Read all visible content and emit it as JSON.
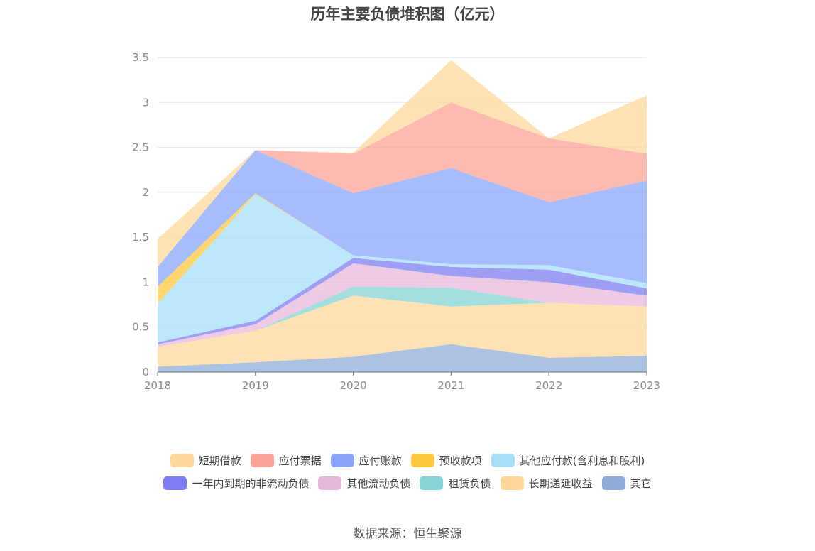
{
  "title": "历年主要负债堆积图（亿元）",
  "source": "数据来源：恒生聚源",
  "chart_data": {
    "type": "area",
    "stacked": true,
    "title": "历年主要负债堆积图（亿元）",
    "x": [
      "2018",
      "2019",
      "2020",
      "2021",
      "2022",
      "2023"
    ],
    "ylim": [
      0,
      3.5
    ],
    "yticks": [
      "0",
      "0.5",
      "1",
      "1.5",
      "2",
      "2.5",
      "3",
      "3.5"
    ],
    "grid": true,
    "legend_position": "bottom",
    "series": [
      {
        "name": "其它",
        "color": "#8fadda",
        "values": [
          0.06,
          0.11,
          0.17,
          0.31,
          0.16,
          0.18
        ]
      },
      {
        "name": "长期递延收益",
        "color": "#fdd89a",
        "values": [
          0.22,
          0.35,
          0.68,
          0.42,
          0.61,
          0.55
        ]
      },
      {
        "name": "租赁负债",
        "color": "#86d4d4",
        "values": [
          0,
          0,
          0.1,
          0.21,
          0,
          0
        ]
      },
      {
        "name": "其他流动负债",
        "color": "#e8b8dc",
        "values": [
          0.03,
          0.07,
          0.26,
          0.13,
          0.23,
          0.12
        ]
      },
      {
        "name": "一年内到期的非流动负债",
        "color": "#7e7ef2",
        "values": [
          0.02,
          0.04,
          0.06,
          0.1,
          0.14,
          0.08
        ]
      },
      {
        "name": "其他应付款(含利息和股利)",
        "color": "#a7dff9",
        "values": [
          0.43,
          1.41,
          0.03,
          0.03,
          0.05,
          0.06
        ]
      },
      {
        "name": "预收款项",
        "color": "#ffc83f",
        "values": [
          0.19,
          0.01,
          0,
          0,
          0,
          0
        ]
      },
      {
        "name": "应付账款",
        "color": "#89a6fc",
        "values": [
          0.22,
          0.48,
          0.69,
          1.07,
          0.7,
          1.14
        ]
      },
      {
        "name": "应付票据",
        "color": "#fca397",
        "values": [
          0,
          0,
          0.44,
          0.73,
          0.71,
          0.3
        ]
      },
      {
        "name": "短期借款",
        "color": "#fdd89a",
        "values": [
          0.31,
          0,
          0.01,
          0.47,
          0,
          0.65
        ]
      }
    ]
  }
}
